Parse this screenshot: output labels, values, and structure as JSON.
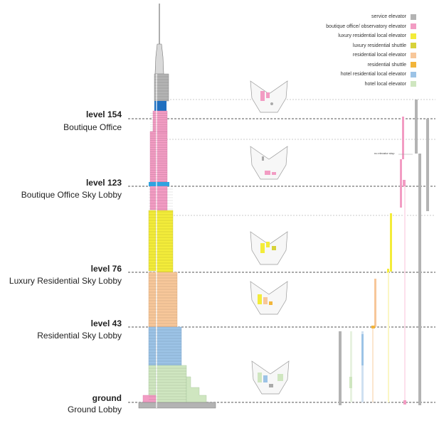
{
  "legend": [
    {
      "label": "service elevator",
      "color": "#b3b3b3"
    },
    {
      "label": "boutique office/ observatory elevator",
      "color": "#f29cc3"
    },
    {
      "label": "luxury residential local elevator",
      "color": "#f3ec3a"
    },
    {
      "label": "luxury residential shuttle",
      "color": "#d7d23a"
    },
    {
      "label": "residential local elevator",
      "color": "#f7c79a"
    },
    {
      "label": "residential shuttle",
      "color": "#f2b53a"
    },
    {
      "label": "hotel residential local elevator",
      "color": "#9cc3e6"
    },
    {
      "label": "hotel local elevator",
      "color": "#cfe6c0"
    }
  ],
  "levels": [
    {
      "num": "level 154",
      "name": "Boutique Office"
    },
    {
      "num": "level 123",
      "name": "Boutique Office Sky Lobby"
    },
    {
      "num": "level 76",
      "name": "Luxury Residential Sky Lobby"
    },
    {
      "num": "level 43",
      "name": "Residential Sky Lobby"
    },
    {
      "num": "ground",
      "name": "Ground Lobby"
    }
  ],
  "annotation": "no elevator stop",
  "colors": {
    "service": "#b3b3b3",
    "boutique": "#f29cc3",
    "observatory_blue": "#1f6fbf",
    "sky_blue": "#2fa3e0",
    "luxury": "#f3ec3a",
    "residential": "#f7c79a",
    "hotel_res": "#9cc3e6",
    "hotel": "#cfe6c0",
    "dashed": "#555555"
  }
}
